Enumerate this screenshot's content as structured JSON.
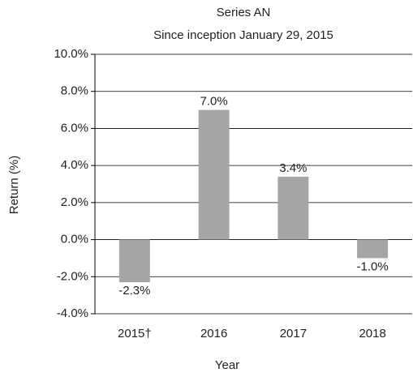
{
  "chart_data": {
    "type": "bar",
    "title": "Series AN",
    "subtitle": "Since inception January 29, 2015",
    "x_label": "Year",
    "y_label": "Return (%)",
    "categories": [
      "2015†",
      "2016",
      "2017",
      "2018"
    ],
    "values": [
      -2.3,
      7.0,
      3.4,
      -1.0
    ],
    "value_labels": [
      "-2.3%",
      "7.0%",
      "3.4%",
      "-1.0%"
    ],
    "color": "#a6a6a6",
    "ylim": [
      -4,
      10
    ],
    "yticks": [
      {
        "value": -4,
        "label": "-4.0%"
      },
      {
        "value": -2,
        "label": "-2.0%"
      },
      {
        "value": 0,
        "label": "0.0%"
      },
      {
        "value": 2,
        "label": "2.0%"
      },
      {
        "value": 4,
        "label": "4.0%"
      },
      {
        "value": 6,
        "label": "6.0%"
      },
      {
        "value": 8,
        "label": "8.0%"
      },
      {
        "value": 10,
        "label": "10.0%"
      }
    ],
    "grid": true
  }
}
